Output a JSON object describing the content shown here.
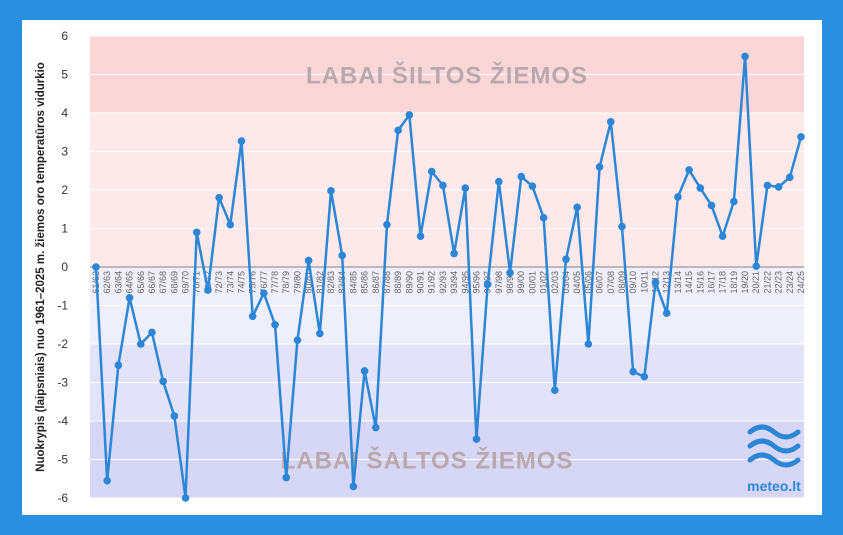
{
  "chart_data": {
    "type": "line",
    "ylabel": "Nuokrypis (laipsniais) nuo 1961–2025 m. žiemos oro temperatūros vidurkio",
    "ylim": [
      -6,
      6
    ],
    "yticks": [
      -6,
      -5,
      -4,
      -3,
      -2,
      -1,
      0,
      1,
      2,
      3,
      4,
      5,
      6
    ],
    "grid": true,
    "annotations": {
      "warm": "LABAI ŠILTOS ŽIEMOS",
      "cold": "LABAI ŠALTOS ŽIEMOS"
    },
    "categories": [
      "61/62",
      "62/63",
      "63/64",
      "64/65",
      "65/66",
      "66/67",
      "67/68",
      "68/69",
      "69/70",
      "70/71",
      "71/72",
      "72/73",
      "73/74",
      "74/75",
      "75/76",
      "76/77",
      "77/78",
      "78/79",
      "79/80",
      "80/81",
      "81/82",
      "82/83",
      "83/84",
      "84/85",
      "85/86",
      "86/87",
      "87/88",
      "88/89",
      "89/90",
      "90/91",
      "91/92",
      "92/93",
      "93/94",
      "94/95",
      "95/96",
      "96/97",
      "97/98",
      "98/99",
      "99/00",
      "00/01",
      "01/02",
      "02/03",
      "03/04",
      "04/05",
      "05/06",
      "06/07",
      "07/08",
      "08/09",
      "09/10",
      "10/11",
      "11/12",
      "12/13",
      "13/14",
      "14/15",
      "15/16",
      "16/17",
      "17/18",
      "18/19",
      "19/20",
      "20/21",
      "21/22",
      "22/23",
      "23/24",
      "24/25"
    ],
    "values": [
      0,
      -5.55,
      -2.55,
      -0.8,
      -2.0,
      -1.7,
      -2.97,
      -3.87,
      -6.0,
      0.9,
      -0.6,
      1.8,
      1.1,
      3.27,
      -1.28,
      -0.68,
      -1.5,
      -5.47,
      -1.9,
      0.17,
      -1.73,
      1.98,
      0.3,
      -5.7,
      -2.7,
      -4.17,
      1.1,
      3.55,
      3.95,
      0.8,
      2.48,
      2.12,
      0.35,
      2.05,
      -4.47,
      -0.45,
      2.22,
      -0.15,
      2.35,
      2.1,
      1.28,
      -3.2,
      0.2,
      1.55,
      -2.0,
      2.6,
      3.77,
      1.05,
      -2.72,
      -2.85,
      -0.4,
      -1.2,
      1.82,
      2.52,
      2.05,
      1.6,
      0.8,
      1.7,
      5.47,
      0.02,
      2.12,
      2.08,
      2.33,
      3.38
    ],
    "line_color": "#2b86d6"
  },
  "logo": {
    "text": "meteo.lt",
    "color": "#2b86d6"
  },
  "frame_color": "#2a8fe0"
}
